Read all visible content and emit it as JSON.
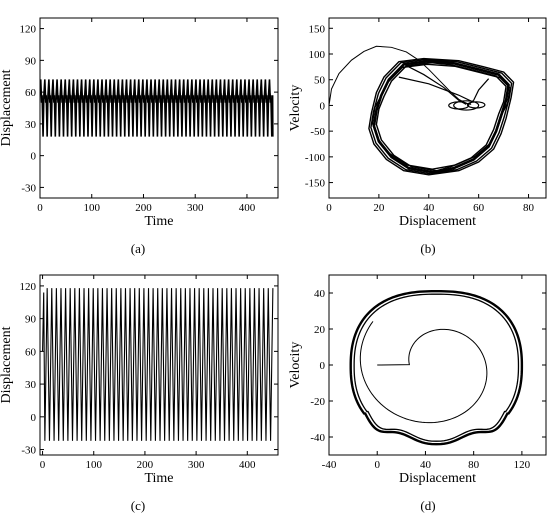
{
  "chart_data": [
    {
      "type": "line",
      "panel": "a",
      "caption": "(a)",
      "xlabel": "Time",
      "ylabel": "Displacement",
      "xlim": [
        0,
        460
      ],
      "ylim": [
        -40,
        130
      ],
      "xticks": [
        0,
        100,
        200,
        300,
        400
      ],
      "yticks": [
        -30,
        0,
        30,
        60,
        90,
        120
      ],
      "series": [
        {
          "style": "periodic oscillation",
          "x_range": [
            0,
            450
          ],
          "start": 60,
          "upper": 72,
          "lower": 18,
          "mid_band": [
            50,
            57
          ],
          "cycles": 57
        }
      ]
    },
    {
      "type": "line",
      "panel": "b",
      "caption": "(b)",
      "xlabel": "Displacement",
      "ylabel": "Velocity",
      "xlim": [
        0,
        87
      ],
      "ylim": [
        -180,
        170
      ],
      "xticks": [
        0,
        20,
        40,
        60,
        80
      ],
      "yticks": [
        -150,
        -100,
        -50,
        0,
        50,
        100,
        150
      ],
      "series": [
        {
          "style": "phase portrait",
          "start": [
            0,
            0
          ],
          "max_velocity": 115,
          "min_velocity": -130,
          "displacement_range": [
            18,
            72
          ],
          "small_loops_near": [
            55,
            0
          ]
        }
      ]
    },
    {
      "type": "line",
      "panel": "c",
      "caption": "(c)",
      "xlabel": "Time",
      "ylabel": "Displacement",
      "xlim": [
        -5,
        460
      ],
      "ylim": [
        -35,
        130
      ],
      "xticks": [
        0,
        100,
        200,
        300,
        400
      ],
      "yticks": [
        -30,
        0,
        30,
        60,
        90,
        120
      ],
      "series": [
        {
          "style": "periodic oscillation",
          "x_range": [
            0,
            450
          ],
          "start": 60,
          "upper": 118,
          "lower": -22,
          "cycles": 50
        }
      ]
    },
    {
      "type": "line",
      "panel": "d",
      "caption": "(d)",
      "xlabel": "Displacement",
      "ylabel": "Velocity",
      "xlim": [
        -40,
        140
      ],
      "ylim": [
        -50,
        50
      ],
      "xticks": [
        -40,
        0,
        40,
        80,
        120
      ],
      "yticks": [
        -40,
        -20,
        0,
        20,
        40
      ],
      "series": [
        {
          "style": "phase portrait",
          "start": [
            0,
            0
          ],
          "displacement_range": [
            -22,
            120
          ],
          "velocity_range": [
            -42,
            41
          ]
        }
      ]
    }
  ]
}
